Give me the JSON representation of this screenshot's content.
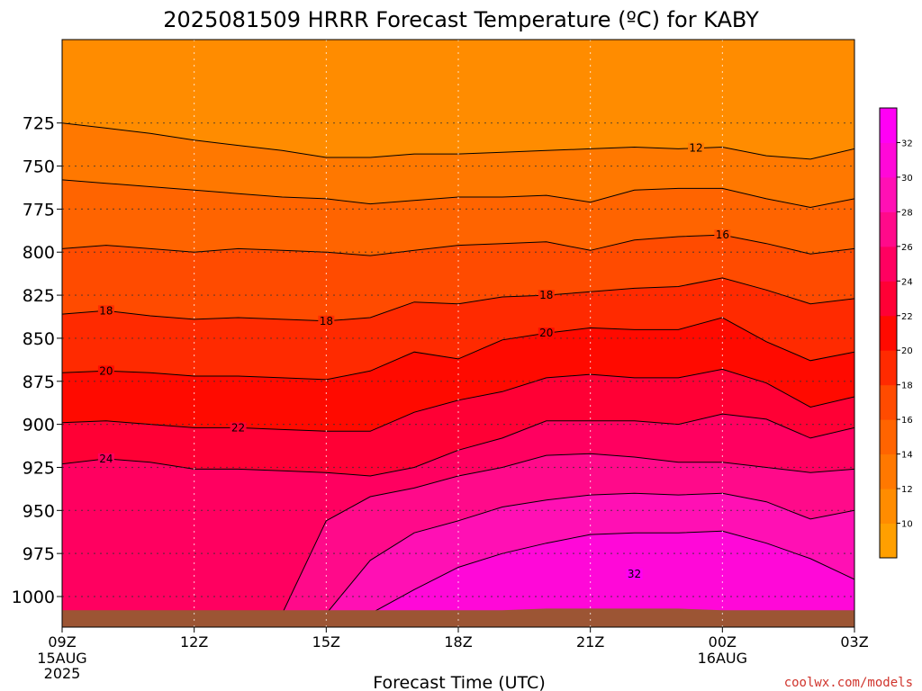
{
  "title": "2025081509 HRRR Forecast Temperature (ºC) for KABY",
  "credit": "coolwx.com/models",
  "chart_data": {
    "type": "heatmap",
    "title": "2025081509 HRRR Forecast Temperature (ºC) for KABY",
    "xlabel": "Forecast Time (UTC)",
    "ylabel": "",
    "x_unit": "hours from 2025-08-15 09Z",
    "x_ticks": [
      {
        "hour": 0,
        "label": "09Z",
        "sub": [
          "15AUG",
          "2025"
        ]
      },
      {
        "hour": 3,
        "label": "12Z",
        "sub": []
      },
      {
        "hour": 6,
        "label": "15Z",
        "sub": []
      },
      {
        "hour": 9,
        "label": "18Z",
        "sub": []
      },
      {
        "hour": 12,
        "label": "21Z",
        "sub": []
      },
      {
        "hour": 15,
        "label": "00Z",
        "sub": [
          "16AUG"
        ]
      },
      {
        "hour": 18,
        "label": "03Z",
        "sub": []
      }
    ],
    "y_ticks": [
      725,
      750,
      775,
      800,
      825,
      850,
      875,
      900,
      925,
      950,
      975,
      1000
    ],
    "y_unit": "hPa",
    "xlim": [
      0,
      18
    ],
    "ylim": [
      712,
      1010
    ],
    "surface_pressure": [
      1008,
      1008,
      1008,
      1008,
      1008,
      1008,
      1008,
      1008,
      1008,
      1008,
      1008,
      1007,
      1007,
      1007,
      1007,
      1008,
      1008,
      1008,
      1008
    ],
    "surface_color": "#9c5534",
    "contour_interval": 2,
    "contour_labels_shown": [
      12,
      16,
      18,
      20,
      22,
      24,
      32
    ],
    "contours": [
      {
        "level": 12,
        "pressure": [
          725,
          728,
          731,
          735,
          738,
          741,
          745,
          745,
          743,
          743,
          742,
          741,
          740,
          739,
          740,
          739,
          744,
          746,
          740
        ]
      },
      {
        "level": 14,
        "pressure": [
          758,
          760,
          762,
          764,
          766,
          768,
          769,
          772,
          770,
          768,
          768,
          767,
          771,
          764,
          763,
          763,
          769,
          774,
          769
        ]
      },
      {
        "level": 16,
        "pressure": [
          798,
          796,
          798,
          800,
          798,
          799,
          800,
          802,
          799,
          796,
          795,
          794,
          799,
          793,
          791,
          790,
          795,
          801,
          798
        ]
      },
      {
        "level": 18,
        "pressure": [
          836,
          834,
          837,
          839,
          838,
          839,
          840,
          838,
          829,
          830,
          826,
          825,
          823,
          821,
          820,
          815,
          822,
          830,
          827
        ]
      },
      {
        "level": 20,
        "pressure": [
          870,
          869,
          870,
          872,
          872,
          873,
          874,
          869,
          858,
          862,
          851,
          847,
          844,
          845,
          845,
          838,
          852,
          863,
          858
        ]
      },
      {
        "level": 22,
        "pressure": [
          899,
          898,
          900,
          902,
          902,
          903,
          904,
          904,
          893,
          886,
          881,
          873,
          871,
          873,
          873,
          868,
          876,
          890,
          884
        ]
      },
      {
        "level": 24,
        "pressure": [
          923,
          920,
          922,
          926,
          926,
          927,
          928,
          930,
          925,
          915,
          908,
          898,
          898,
          898,
          900,
          894,
          897,
          908,
          902
        ]
      },
      {
        "level": 26,
        "pressure": [
          1010,
          1010,
          1010,
          1010,
          1010,
          1010,
          956,
          942,
          937,
          930,
          925,
          918,
          917,
          919,
          922,
          922,
          925,
          928,
          926
        ]
      },
      {
        "level": 28,
        "pressure": [
          1010,
          1010,
          1010,
          1010,
          1010,
          1010,
          1010,
          979,
          963,
          956,
          948,
          944,
          941,
          940,
          941,
          940,
          945,
          955,
          950
        ]
      },
      {
        "level": 30,
        "pressure": [
          1010,
          1010,
          1010,
          1010,
          1010,
          1010,
          1010,
          1010,
          996,
          983,
          975,
          969,
          964,
          963,
          963,
          962,
          969,
          978,
          990
        ]
      }
    ],
    "colorbar": {
      "levels": [
        8,
        10,
        12,
        14,
        16,
        18,
        20,
        22,
        24,
        26,
        28,
        30,
        32,
        34
      ],
      "labels": [
        10,
        12,
        14,
        16,
        18,
        20,
        22,
        24,
        26,
        28,
        30,
        32
      ],
      "colors": [
        "#ff9f00",
        "#ff8c00",
        "#ff7800",
        "#ff6400",
        "#ff4b00",
        "#ff2a00",
        "#ff0a00",
        "#ff0035",
        "#ff0060",
        "#ff0a8a",
        "#ff10b4",
        "#ff08d8",
        "#ff00f5"
      ]
    }
  }
}
